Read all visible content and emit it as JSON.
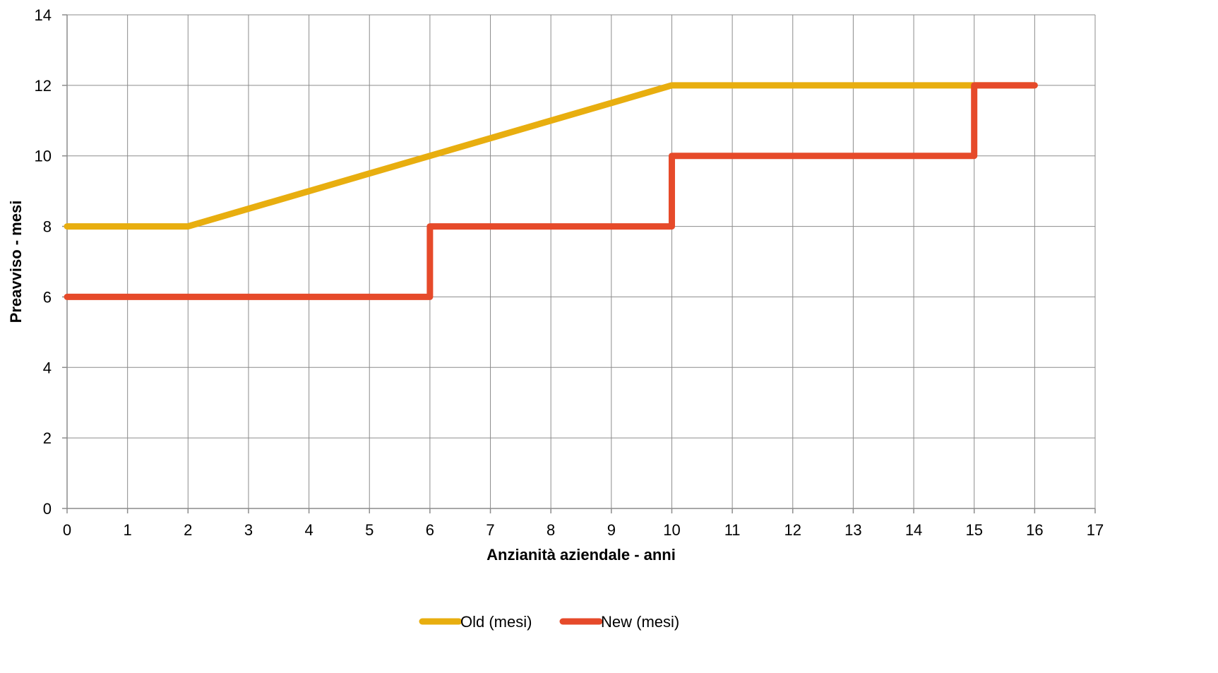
{
  "chart_data": {
    "type": "line",
    "title": "",
    "xlabel": "Anzianità aziendale - anni",
    "ylabel": "Preavviso - mesi",
    "xlim": [
      0,
      17
    ],
    "ylim": [
      0,
      14
    ],
    "x_ticks": [
      0,
      1,
      2,
      3,
      4,
      5,
      6,
      7,
      8,
      9,
      10,
      11,
      12,
      13,
      14,
      15,
      16,
      17
    ],
    "y_ticks": [
      0,
      2,
      4,
      6,
      8,
      10,
      12,
      14
    ],
    "grid": true,
    "legend_position": "bottom",
    "series": [
      {
        "name": "Old (mesi)",
        "color": "#E8AE0F",
        "x": [
          0,
          2,
          10,
          15,
          16
        ],
        "y": [
          8,
          8,
          12,
          12,
          12
        ]
      },
      {
        "name": "New (mesi)",
        "color": "#E64A2A",
        "x": [
          0,
          6,
          6,
          10,
          10,
          15,
          15,
          16
        ],
        "y": [
          6,
          6,
          8,
          8,
          10,
          10,
          12,
          12
        ]
      }
    ]
  }
}
